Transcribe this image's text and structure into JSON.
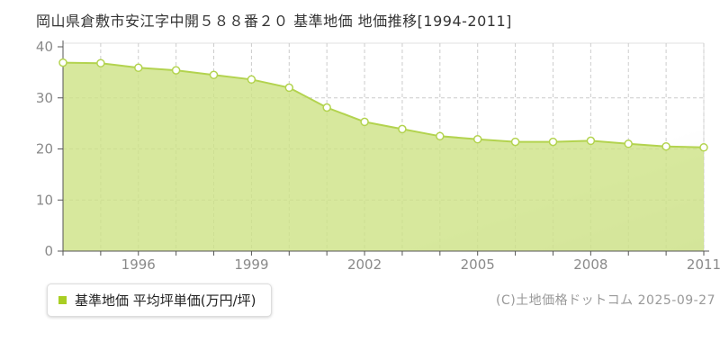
{
  "title": "岡山県倉敷市安江字中開５８８番２０ 基準地価 地価推移[1994-2011]",
  "legend": {
    "label": "基準地価 平均坪単価(万円/坪)",
    "marker_color": "#a9ce24"
  },
  "footer": {
    "copyright": "(C)土地価格ドットコム 2025-09-27"
  },
  "colors": {
    "line": "#b3d34f",
    "fill": "#cde284",
    "marker_fill": "#ffffff",
    "grid": "#cccccc",
    "plot_border": "#e0e0e0",
    "axis": "#555555",
    "tick_label": "#8a8a8a",
    "title_text": "#333333"
  },
  "chart_data": {
    "type": "area",
    "title": "岡山県倉敷市安江字中開５８８番２０ 基準地価 地価推移[1994-2011]",
    "series_name": "基準地価 平均坪単価(万円/坪)",
    "x": [
      1994,
      1995,
      1996,
      1997,
      1998,
      1999,
      2000,
      2001,
      2002,
      2003,
      2004,
      2005,
      2006,
      2007,
      2008,
      2009,
      2010,
      2011
    ],
    "values": [
      36.9,
      36.8,
      35.9,
      35.4,
      34.5,
      33.6,
      32.0,
      28.1,
      25.3,
      23.9,
      22.5,
      21.9,
      21.4,
      21.4,
      21.6,
      21.0,
      20.5,
      20.3
    ],
    "xlabel": "",
    "ylabel": "平均坪単価(万円/坪)",
    "ylim": [
      0,
      40
    ],
    "yticks": [
      0,
      10,
      20,
      30,
      40
    ],
    "xticks": [
      1996,
      1999,
      2002,
      2005,
      2008,
      2011
    ],
    "grid": true,
    "marker": "circle-white",
    "legend_position": "bottom-left"
  }
}
